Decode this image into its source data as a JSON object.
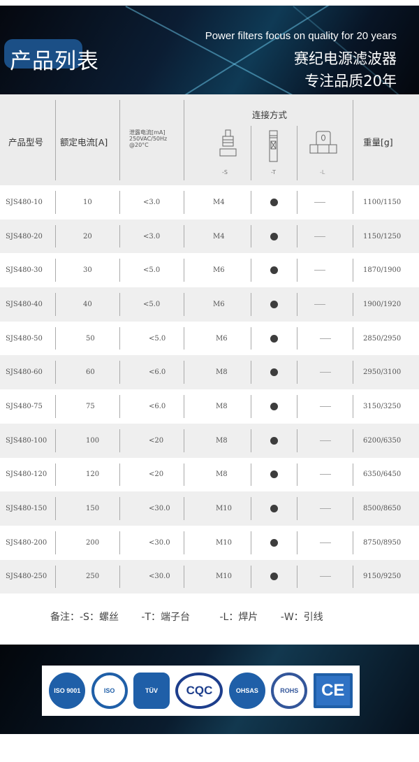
{
  "banner": {
    "title": "产品列表",
    "tagline_en": "Power filters focus on quality for 20 years",
    "tagline_cn_1": "赛纪电源滤波器",
    "tagline_cn_2": "专注品质20年"
  },
  "table": {
    "headers": {
      "model": "产品型号",
      "rated_current": "额定电流[A]",
      "leakage_l1": "泄露电流[mA]",
      "leakage_l2": "250VAC/50Hz",
      "leakage_l3": "@20°C",
      "connection": "连接方式",
      "conn_s": "-S",
      "conn_t": "-T",
      "conn_l": "-L",
      "weight": "重量[g]"
    },
    "rows": [
      {
        "model": "SJS480-10",
        "current": "10",
        "leakage": "<3.0",
        "s": "M4",
        "t": "dot",
        "l": "dash",
        "weight": "1100/1150"
      },
      {
        "model": "SJS480-20",
        "current": "20",
        "leakage": "<3.0",
        "s": "M4",
        "t": "dot",
        "l": "dash",
        "weight": "1150/1250"
      },
      {
        "model": "SJS480-30",
        "current": "30",
        "leakage": "<5.0",
        "s": "M6",
        "t": "dot",
        "l": "dash",
        "weight": "1870/1900"
      },
      {
        "model": "SJS480-40",
        "current": "40",
        "leakage": "<5.0",
        "s": "M6",
        "t": "dot",
        "l": "dash",
        "weight": "1900/1920"
      },
      {
        "model": "SJS480-50",
        "current": "50",
        "leakage": "<5.0",
        "s": "M6",
        "t": "dot",
        "l": "dash",
        "weight": "2850/2950"
      },
      {
        "model": "SJS480-60",
        "current": "60",
        "leakage": "<6.0",
        "s": "M8",
        "t": "dot",
        "l": "dash",
        "weight": "2950/3100"
      },
      {
        "model": "SJS480-75",
        "current": "75",
        "leakage": "<6.0",
        "s": "M8",
        "t": "dot",
        "l": "dash",
        "weight": "3150/3250"
      },
      {
        "model": "SJS480-100",
        "current": "100",
        "leakage": "<20",
        "s": "M8",
        "t": "dot",
        "l": "dash",
        "weight": "6200/6350"
      },
      {
        "model": "SJS480-120",
        "current": "120",
        "leakage": "<20",
        "s": "M8",
        "t": "dot",
        "l": "dash",
        "weight": "6350/6450"
      },
      {
        "model": "SJS480-150",
        "current": "150",
        "leakage": "<30.0",
        "s": "M10",
        "t": "dot",
        "l": "dash",
        "weight": "8500/8650"
      },
      {
        "model": "SJS480-200",
        "current": "200",
        "leakage": "<30.0",
        "s": "M10",
        "t": "dot",
        "l": "dash",
        "weight": "8750/8950"
      },
      {
        "model": "SJS480-250",
        "current": "250",
        "leakage": "<30.0",
        "s": "M10",
        "t": "dot",
        "l": "dash",
        "weight": "9150/9250"
      }
    ]
  },
  "notes": [
    "备注：-S：螺丝",
    "-T：端子台",
    "-L：焊片",
    "-W：引线"
  ],
  "certifications": [
    {
      "label": "ISO 9001",
      "icon": "iso9001-certified-logo"
    },
    {
      "label": "ISO",
      "icon": "iso-company-logo"
    },
    {
      "label": "TÜV",
      "icon": "tuv-logo"
    },
    {
      "label": "CQC",
      "icon": "cqc-logo"
    },
    {
      "label": "OHSAS",
      "icon": "ohsas-logo"
    },
    {
      "label": "ROHS",
      "icon": "rohs-compliant-logo"
    },
    {
      "label": "CE",
      "icon": "ce-mark-logo"
    }
  ]
}
